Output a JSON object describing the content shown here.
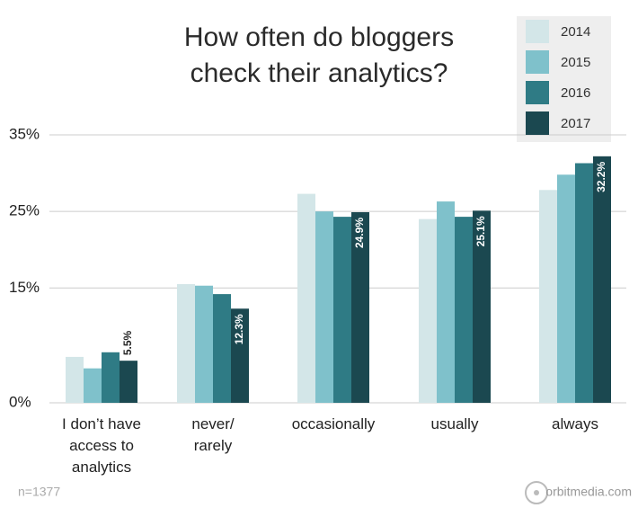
{
  "chart_data": {
    "type": "bar",
    "title": "How often do bloggers\ncheck their analytics?",
    "categories": [
      "I don’t have\naccess to\nanalytics",
      "never/\nrarely",
      "occasionally",
      "usually",
      "always"
    ],
    "series": [
      {
        "name": "2014",
        "color": "#d3e6e8",
        "values": [
          6.0,
          15.5,
          27.3,
          24.0,
          27.8
        ]
      },
      {
        "name": "2015",
        "color": "#7fc1cb",
        "values": [
          4.5,
          15.3,
          25.0,
          26.3,
          29.8
        ]
      },
      {
        "name": "2016",
        "color": "#2f7b85",
        "values": [
          6.6,
          14.2,
          24.3,
          24.3,
          31.3
        ]
      },
      {
        "name": "2017",
        "color": "#1b4850",
        "values": [
          5.5,
          12.3,
          24.9,
          25.1,
          32.2
        ],
        "value_labels": [
          "5.5%",
          "12.3%",
          "24.9%",
          "25.1%",
          "32.2%"
        ]
      }
    ],
    "ylim": [
      0,
      35
    ],
    "yticks": [
      {
        "value": 0,
        "label": "0%"
      },
      {
        "value": 15,
        "label": "15%"
      },
      {
        "value": 25,
        "label": "25%"
      },
      {
        "value": 35,
        "label": "35%"
      }
    ],
    "grid": true,
    "legend": "top-right",
    "note": "n=1377",
    "source": "orbitmedia.com"
  }
}
